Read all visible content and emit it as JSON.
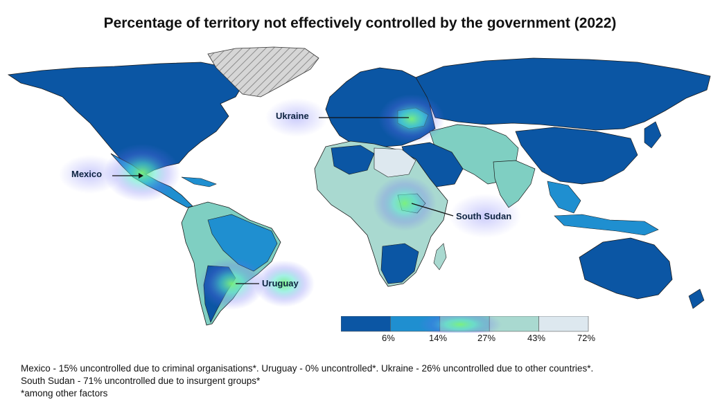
{
  "title": "Percentage of territory not effectively controlled by the government (2022)",
  "callouts": {
    "ukraine": "Ukraine",
    "mexico": "Mexico",
    "south_sudan": "South Sudan",
    "uruguay": "Uruguay"
  },
  "legend": {
    "ticks": [
      "6%",
      "14%",
      "27%",
      "43%",
      "72%"
    ],
    "colors": [
      "#0b56a4",
      "#1f8fd0",
      "#7fcfc2",
      "#a9d9d0",
      "#dde8ef"
    ]
  },
  "colors": {
    "ocean": "#ffffff",
    "low": "#0b56a4",
    "mid_low": "#1f8fd0",
    "mid": "#7fcfc2",
    "high": "#a9d9d0",
    "very_high": "#dde8ef",
    "no_data_hatch": "#cfcfcf"
  },
  "footnote": {
    "line1": "Mexico - 15% uncontrolled due to criminal organisations*. Uruguay - 0% uncontrolled*. Ukraine - 26% uncontrolled due to other countries*.",
    "line2": "South Sudan -  71% uncontrolled due to insurgent groups*",
    "line3": "*among other factors"
  },
  "chart_data": {
    "type": "heatmap",
    "title": "Percentage of territory not effectively controlled by the government (2022)",
    "legend_scale": [
      "6%",
      "14%",
      "27%",
      "43%",
      "72%"
    ],
    "highlighted": [
      {
        "country": "Mexico",
        "value_pct": 15
      },
      {
        "country": "Uruguay",
        "value_pct": 0
      },
      {
        "country": "Ukraine",
        "value_pct": 26
      },
      {
        "country": "South Sudan",
        "value_pct": 71
      }
    ]
  }
}
